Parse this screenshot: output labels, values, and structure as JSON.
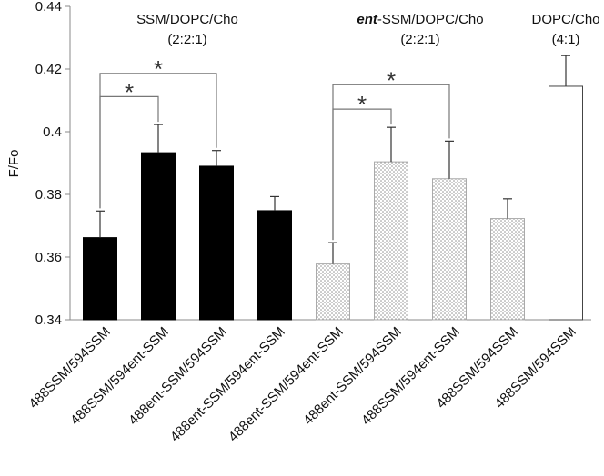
{
  "chart_data": {
    "type": "bar",
    "title": "",
    "xlabel": "",
    "ylabel": "F/Fo",
    "ylim": [
      0.34,
      0.44
    ],
    "yticks": [
      0.34,
      0.36,
      0.38,
      0.4,
      0.42,
      0.44
    ],
    "ytick_labels": [
      "0.34",
      "0.36",
      "0.38",
      "0.4",
      "0.42",
      "0.44"
    ],
    "grid": false,
    "groups": [
      {
        "line1_prefix": "",
        "line1": "SSM/DOPC/Cho",
        "line2": "(2:2:1)",
        "fill": "black"
      },
      {
        "line1_prefix": "ent",
        "line1": "-SSM/DOPC/Cho",
        "line2": "(2:2:1)",
        "fill": "dotted"
      },
      {
        "line1_prefix": "",
        "line1": "DOPC/Cho",
        "line2": "(4:1)",
        "fill": "white"
      }
    ],
    "categories": [
      "488SSM/594SSM",
      "488SSM/594ent-SSM",
      "488ent-SSM/594SSM",
      "488ent-SSM/594ent-SSM",
      "488ent-SSM/594ent-SSM",
      "488ent-SSM/594SSM",
      "488SSM/594ent-SSM",
      "488SSM/594SSM",
      "488SSM/594SSM"
    ],
    "values": [
      0.3662,
      0.3933,
      0.389,
      0.3748,
      0.3578,
      0.3904,
      0.385,
      0.3723,
      0.4145
    ],
    "errors": [
      0.0085,
      0.009,
      0.005,
      0.0045,
      0.0068,
      0.011,
      0.012,
      0.0063,
      0.0098
    ],
    "bar_group": [
      0,
      0,
      0,
      0,
      1,
      1,
      1,
      1,
      2
    ],
    "significance": [
      {
        "from": 0,
        "to": 1,
        "y": 0.4112,
        "label": "*"
      },
      {
        "from": 0,
        "to": 2,
        "y": 0.4186,
        "label": "*"
      },
      {
        "from": 4,
        "to": 5,
        "y": 0.4072,
        "label": "*"
      },
      {
        "from": 4,
        "to": 6,
        "y": 0.415,
        "label": "*"
      }
    ]
  }
}
